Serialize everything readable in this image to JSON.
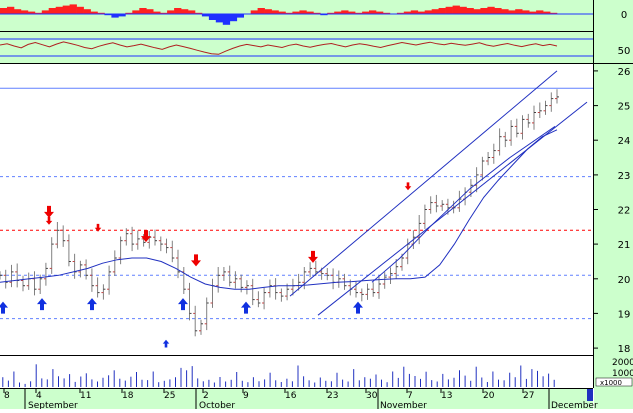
{
  "chart_data": [
    {
      "type": "area",
      "panel": "oscillator-top",
      "title": "",
      "y_tick_labels": [
        "0"
      ],
      "ylim": [
        -1,
        1
      ],
      "colors": {
        "positive": "#ff2020",
        "negative": "#2030ff",
        "background": "#ccffcc"
      },
      "values": [
        0.5,
        0.6,
        0.4,
        0.3,
        0.2,
        0.1,
        0.3,
        0.5,
        0.6,
        0.7,
        0.8,
        0.6,
        0.4,
        0.2,
        0.1,
        -0.1,
        -0.3,
        -0.2,
        0.1,
        0.3,
        0.5,
        0.4,
        0.2,
        0.1,
        0.3,
        0.5,
        0.4,
        0.3,
        0.1,
        -0.2,
        -0.5,
        -0.7,
        -0.9,
        -0.6,
        -0.3,
        0.0,
        0.3,
        0.5,
        0.4,
        0.3,
        0.2,
        0.1,
        0.2,
        0.3,
        0.2,
        0.1,
        -0.1,
        0.1,
        0.2,
        0.3,
        0.2,
        0.1,
        0.2,
        0.3,
        0.2,
        0.1,
        0.0,
        0.1,
        0.2,
        0.3,
        0.2,
        0.3,
        0.4,
        0.5,
        0.6,
        0.7,
        0.6,
        0.5,
        0.4,
        0.5,
        0.6,
        0.5,
        0.4,
        0.3,
        0.4,
        0.3,
        0.2,
        0.3,
        0.2,
        0.1
      ]
    },
    {
      "type": "line",
      "panel": "rsi",
      "title": "",
      "y_tick_labels": [
        "50"
      ],
      "ylim": [
        0,
        100
      ],
      "reference_lines": [
        70,
        30
      ],
      "colors": {
        "line": "#b02020",
        "reference": "#2030ff",
        "background": "#ccffcc"
      },
      "values": [
        58,
        62,
        55,
        49,
        60,
        66,
        59,
        52,
        61,
        68,
        63,
        57,
        50,
        46,
        54,
        60,
        65,
        58,
        52,
        56,
        61,
        55,
        49,
        44,
        52,
        58,
        53,
        47,
        41,
        35,
        30,
        28,
        38,
        47,
        55,
        60,
        56,
        52,
        58,
        54,
        50,
        57,
        61,
        55,
        51,
        56,
        60,
        63,
        57,
        52,
        58,
        62,
        59,
        54,
        50,
        56,
        61,
        66,
        62,
        58,
        63,
        67,
        62,
        59,
        64,
        60,
        57,
        61,
        65,
        58,
        54,
        59,
        63,
        57,
        53,
        58,
        62,
        56,
        60,
        55
      ]
    },
    {
      "type": "line",
      "panel": "price",
      "title": "",
      "xlabel": "",
      "ylabel": "",
      "ylim": [
        17.8,
        26.2
      ],
      "y_tick_labels": [
        "18",
        "19",
        "20",
        "21",
        "22",
        "23",
        "24",
        "25",
        "26"
      ],
      "x_tick_labels": [
        "8",
        "4",
        "11",
        "18",
        "25",
        "2",
        "9",
        "16",
        "23",
        "30",
        "7",
        "13",
        "20",
        "27"
      ],
      "month_labels": [
        "September",
        "October",
        "November",
        "December"
      ],
      "grid": false,
      "horizontal_levels": [
        {
          "value": 25.5,
          "style": "solid",
          "color": "#6080ff"
        },
        {
          "value": 22.95,
          "style": "dashed",
          "color": "#6080ff"
        },
        {
          "value": 21.4,
          "style": "dashed",
          "color": "#ff0000"
        },
        {
          "value": 20.1,
          "style": "dashed",
          "color": "#6080ff"
        },
        {
          "value": 18.85,
          "style": "dashed",
          "color": "#6080ff"
        }
      ],
      "series": [
        {
          "type": "ohlc",
          "color": "#808080",
          "close": [
            20.1,
            19.9,
            20.2,
            19.95,
            19.8,
            20.0,
            19.7,
            20.0,
            20.3,
            21.0,
            21.4,
            21.1,
            20.5,
            20.2,
            20.4,
            20.1,
            19.8,
            19.6,
            19.7,
            20.2,
            20.6,
            21.1,
            21.3,
            21.0,
            21.15,
            21.05,
            21.2,
            21.1,
            21.0,
            20.9,
            20.6,
            20.2,
            19.7,
            19.0,
            18.5,
            18.7,
            19.3,
            19.8,
            20.1,
            20.2,
            19.9,
            20.0,
            19.75,
            19.8,
            19.4,
            19.3,
            19.6,
            19.8,
            19.6,
            19.5,
            19.7,
            19.8,
            19.9,
            20.2,
            20.3,
            20.2,
            20.15,
            20.1,
            19.9,
            20.0,
            19.8,
            19.7,
            19.6,
            19.55,
            19.7,
            19.6,
            19.85,
            20.05,
            20.15,
            20.35,
            20.6,
            21.0,
            21.2,
            21.6,
            22.0,
            22.2,
            22.1,
            22.15,
            22.05,
            22.05,
            22.3,
            22.5,
            22.7,
            23.0,
            23.4,
            23.5,
            23.7,
            24.1,
            24.0,
            24.4,
            24.2,
            24.6,
            24.5,
            24.8,
            24.85,
            25.0,
            25.2,
            25.25
          ]
        },
        {
          "type": "line",
          "name": "",
          "color": "#2030c0",
          "values": [
            19.9,
            19.95,
            20.0,
            20.05,
            20.1,
            20.2,
            20.3,
            20.45,
            20.55,
            20.6,
            20.6,
            20.5,
            20.3,
            20.05,
            19.85,
            19.75,
            19.7,
            19.7,
            19.75,
            19.8,
            19.8,
            19.82,
            19.86,
            19.9,
            19.92,
            19.95,
            19.98,
            20.0,
            20.0,
            20.05,
            20.4,
            21.0,
            21.7,
            22.35,
            22.85,
            23.3,
            23.75,
            24.1,
            24.3
          ]
        }
      ],
      "trend_lines": [
        {
          "from": {
            "x_label": "16",
            "y": 19.5
          },
          "to": {
            "x_label": "30",
            "y": 26.0
          },
          "color": "#2030c0"
        },
        {
          "from": {
            "x_label": "23",
            "y": 18.95
          },
          "to": {
            "x_label": "30",
            "y": 25.1
          },
          "color": "#2030c0"
        }
      ],
      "signals": {
        "sell": [
          {
            "x_label": "4",
            "y": 21.5,
            "size": "small"
          },
          {
            "x_label": "4",
            "y": 21.7,
            "size": "large"
          },
          {
            "x_label": "11",
            "y": 21.3,
            "size": "small"
          },
          {
            "x_label": "18",
            "y": 21.0,
            "size": "large"
          },
          {
            "x_label": "25",
            "y": 20.3,
            "size": "large"
          },
          {
            "x_label": "16",
            "y": 20.4,
            "size": "large"
          },
          {
            "x_label": "30",
            "y": 22.5,
            "size": "small"
          }
        ],
        "buy": [
          {
            "x_label": "8",
            "y": 19.4,
            "size": "large"
          },
          {
            "x_label": "4",
            "y": 19.5,
            "size": "large"
          },
          {
            "x_label": "11",
            "y": 19.5,
            "size": "large"
          },
          {
            "x_label": "25",
            "y": 18.3,
            "size": "small"
          },
          {
            "x_label": "25",
            "y": 19.5,
            "size": "large"
          },
          {
            "x_label": "9",
            "y": 19.4,
            "size": "large"
          },
          {
            "x_label": "30",
            "y": 19.4,
            "size": "large"
          }
        ]
      }
    },
    {
      "type": "bar",
      "panel": "volume",
      "title": "",
      "y_tick_labels": [
        "2000",
        "1000",
        "x1000"
      ],
      "ylim": [
        0,
        2600
      ],
      "color": "#2030c0",
      "values": [
        820,
        540,
        1300,
        380,
        260,
        480,
        1900,
        720,
        640,
        1500,
        900,
        720,
        1080,
        430,
        880,
        1150,
        640,
        460,
        780,
        980,
        1400,
        700,
        540,
        860,
        1260,
        600,
        580,
        1300,
        400,
        520,
        640,
        820,
        1600,
        1400,
        1750,
        720,
        480,
        600,
        380,
        840,
        460,
        600,
        1260,
        520,
        400,
        820,
        480,
        640,
        1200,
        560,
        420,
        700,
        480,
        1800,
        900,
        560,
        380,
        800,
        520,
        480,
        1200,
        620,
        460,
        1500,
        560,
        820,
        700,
        1050,
        620,
        400,
        1300,
        760,
        1700,
        1100,
        920,
        680,
        1280,
        580,
        460,
        1100,
        640,
        780,
        1400,
        960,
        520,
        1700,
        800,
        420,
        1300,
        620,
        560,
        1200,
        820,
        1800,
        680,
        1500,
        1350,
        900,
        1120,
        600
      ]
    }
  ]
}
